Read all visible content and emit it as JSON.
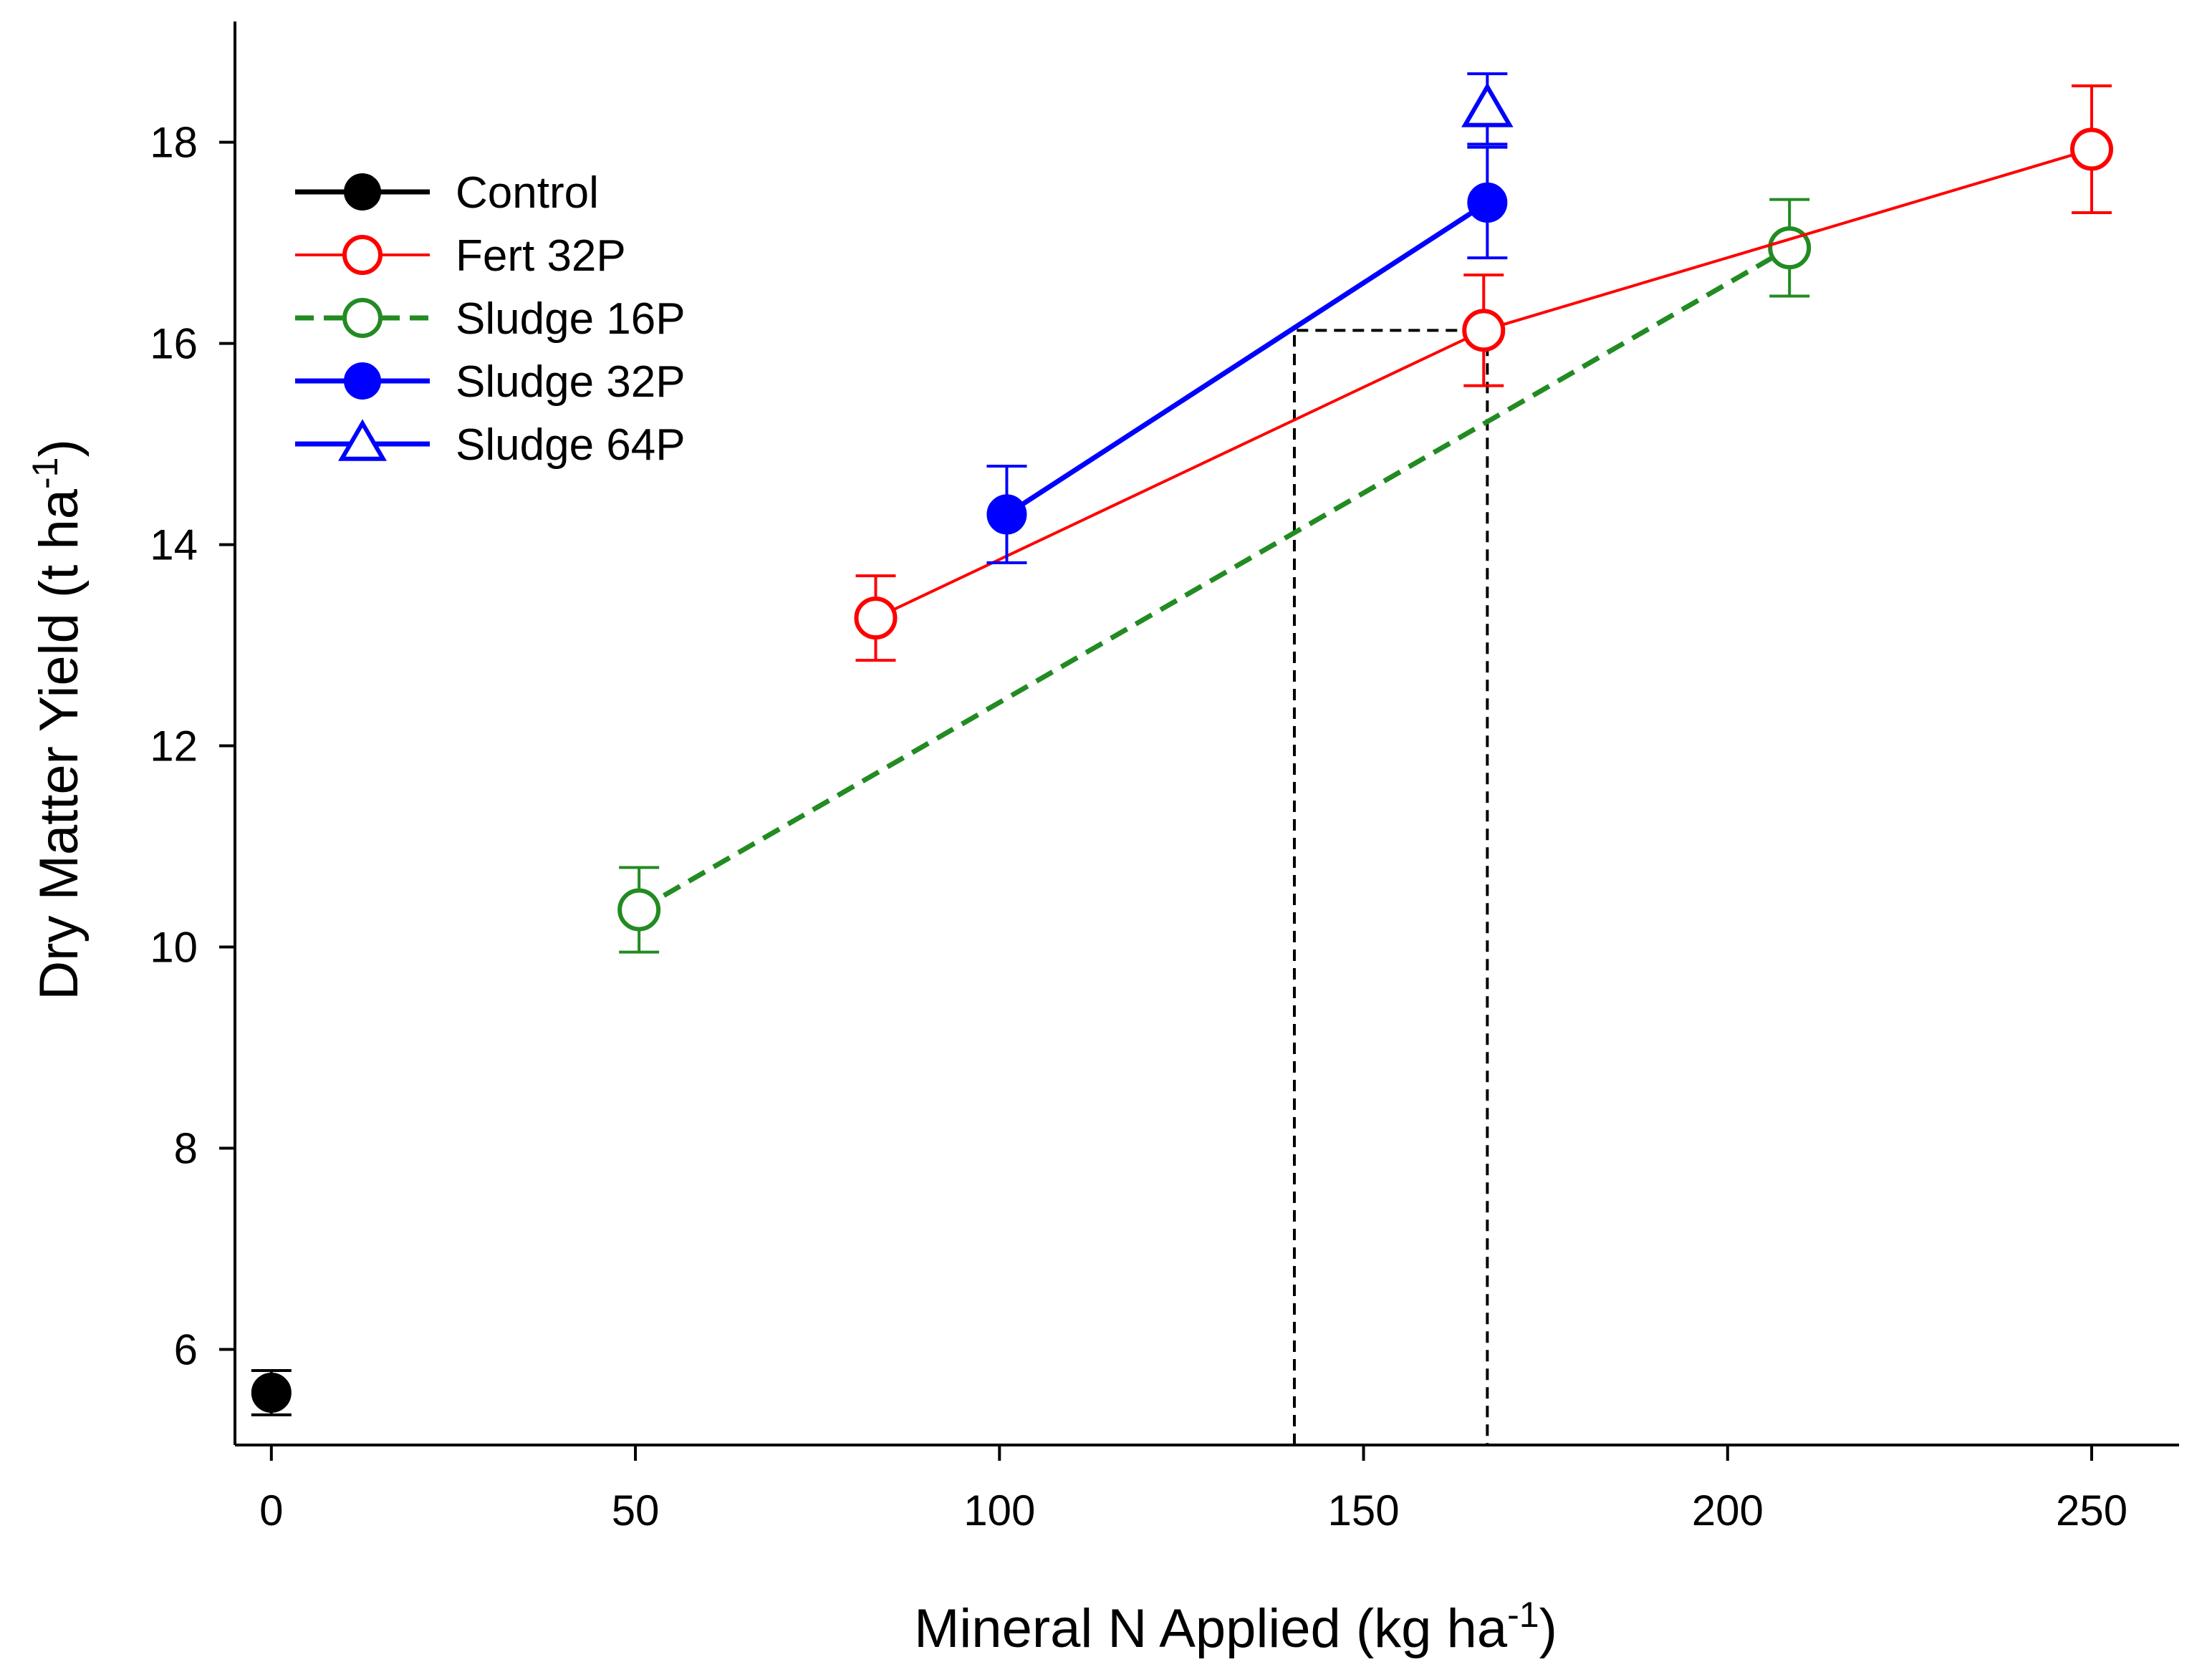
{
  "chart_data": {
    "type": "line",
    "xlabel": {
      "main": "Mineral N Applied (kg ha",
      "sup": "-1",
      "close": ")"
    },
    "ylabel": {
      "main": "Dry Matter Yield (t ha",
      "sup": "-1",
      "close": ")"
    },
    "xlim": [
      -5,
      262
    ],
    "ylim": [
      5.05,
      19.2
    ],
    "xticks": [
      0,
      50,
      100,
      150,
      200,
      250
    ],
    "yticks": [
      6,
      8,
      10,
      12,
      14,
      16,
      18
    ],
    "grid": false,
    "legend_position": "top-left",
    "series": [
      {
        "name": "Control",
        "color": "#000000",
        "marker": "filled-circle",
        "line": "solid",
        "points": [
          {
            "x": 0,
            "y": 5.57,
            "err": 0.22
          }
        ]
      },
      {
        "name": "Fert 32P",
        "color": "#ff0000",
        "marker": "open-circle",
        "line": "solid",
        "points": [
          {
            "x": 83,
            "y": 13.27,
            "err": 0.42
          },
          {
            "x": 166.5,
            "y": 16.13,
            "err": 0.55
          },
          {
            "x": 250,
            "y": 17.93,
            "err": 0.63
          }
        ]
      },
      {
        "name": "Sludge 16P",
        "color": "#228b22",
        "marker": "open-circle",
        "line": "dashed",
        "points": [
          {
            "x": 50.5,
            "y": 10.37,
            "err": 0.42
          },
          {
            "x": 208.5,
            "y": 16.95,
            "err": 0.48
          }
        ]
      },
      {
        "name": "Sludge 32P",
        "color": "#0000ff",
        "marker": "filled-circle",
        "line": "solid",
        "points": [
          {
            "x": 101,
            "y": 14.3,
            "err": 0.48
          },
          {
            "x": 167,
            "y": 17.4,
            "err": 0.55
          }
        ]
      },
      {
        "name": "Sludge 64P",
        "color": "#0000ff",
        "marker": "open-triangle",
        "line": "solid",
        "points": [
          {
            "x": 167,
            "y": 18.33,
            "err": 0.35
          }
        ]
      }
    ],
    "annotations": [
      {
        "type": "dashed-box",
        "color": "#000000",
        "x_from": 140.5,
        "x_to": 167,
        "y_from": 5.05,
        "y_to": 16.13
      }
    ]
  }
}
